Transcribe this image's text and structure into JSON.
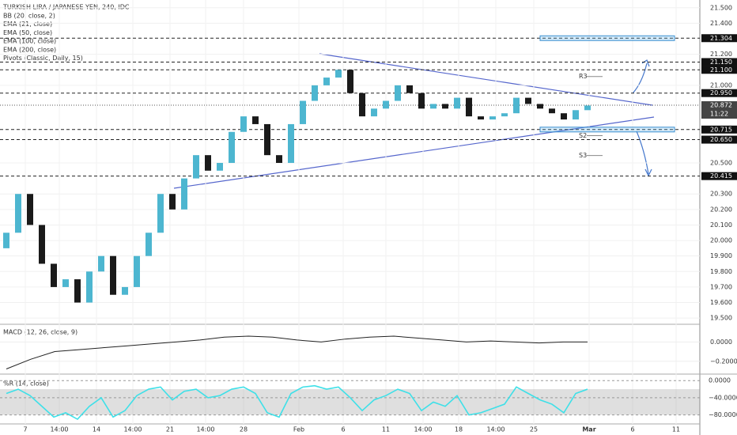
{
  "chart_data": {
    "type": "candlestick",
    "title": "TURKISH LIRA / JAPANESE YEN, 240, IDC",
    "indicators": [
      "BB (20, close, 2)",
      "EMA (21, close)",
      "EMA (50, close)",
      "EMA (100, close)",
      "EMA (200, close)",
      "Pivots (Classic, Daily, 15)"
    ],
    "open": [
      19.95,
      20.05,
      20.3,
      20.1,
      19.85,
      19.7,
      19.75,
      19.6,
      19.8,
      19.9,
      19.65,
      19.7,
      19.9,
      20.05,
      20.3,
      20.2,
      20.4,
      20.55,
      20.45,
      20.5,
      20.7,
      20.8,
      20.75,
      20.55,
      20.5,
      20.75,
      20.9,
      21.0,
      21.05,
      21.1,
      20.95,
      20.8,
      20.85,
      20.9,
      21.0,
      20.95,
      20.85,
      20.88,
      20.85,
      20.92,
      20.8,
      20.78,
      20.8,
      20.82,
      20.92,
      20.88,
      20.85,
      20.82,
      20.78,
      20.84
    ],
    "close": [
      20.05,
      20.3,
      20.1,
      19.85,
      19.7,
      19.75,
      19.6,
      19.8,
      19.9,
      19.65,
      19.7,
      19.9,
      20.05,
      20.3,
      20.2,
      20.4,
      20.55,
      20.45,
      20.5,
      20.7,
      20.8,
      20.75,
      20.55,
      20.5,
      20.75,
      20.9,
      21.0,
      21.05,
      21.1,
      20.95,
      20.8,
      20.85,
      20.9,
      21.0,
      20.95,
      20.85,
      20.88,
      20.85,
      20.92,
      20.8,
      20.78,
      20.8,
      20.82,
      20.92,
      20.88,
      20.85,
      20.82,
      20.78,
      20.84,
      20.87
    ],
    "up_color": "#4db6d0",
    "down_color": "#1a1a1a",
    "ylim": [
      19.46,
      21.55
    ],
    "yticks": [
      {
        "value": 21.5,
        "label": "21.500"
      },
      {
        "value": 21.4,
        "label": "21.400"
      },
      {
        "value": 21.2,
        "label": "21.200"
      },
      {
        "value": 21.0,
        "label": "21.000"
      },
      {
        "value": 20.5,
        "label": "20.500"
      },
      {
        "value": 20.3,
        "label": "20.300"
      },
      {
        "value": 20.2,
        "label": "20.200"
      },
      {
        "value": 20.1,
        "label": "20.100"
      },
      {
        "value": 20.0,
        "label": "20.000"
      },
      {
        "value": 19.9,
        "label": "19.900"
      },
      {
        "value": 19.8,
        "label": "19.800"
      },
      {
        "value": 19.7,
        "label": "19.700"
      },
      {
        "value": 19.6,
        "label": "19.600"
      },
      {
        "value": 19.5,
        "label": "19.500"
      }
    ],
    "levels": [
      {
        "value": 21.304,
        "label": "21.304"
      },
      {
        "value": 21.15,
        "label": "21.150"
      },
      {
        "value": 21.1,
        "label": "21.100"
      },
      {
        "value": 20.95,
        "label": "20.950"
      },
      {
        "value": 20.715,
        "label": "20.715"
      },
      {
        "value": 20.65,
        "label": "20.650"
      },
      {
        "value": 20.415,
        "label": "20.415"
      }
    ],
    "last_price": {
      "value": 20.872,
      "label": "20.872"
    },
    "time_label": "11:22",
    "pivots": [
      {
        "name": "R3",
        "value": 21.057
      },
      {
        "name": "S2",
        "value": 20.676
      },
      {
        "name": "S3",
        "value": 20.548
      }
    ],
    "x_labels": [
      "7",
      "14:00",
      "14",
      "14:00",
      "21",
      "14:00",
      "28",
      "Feb",
      "6",
      "11",
      "14:00",
      "18",
      "14:00",
      "25",
      "Mar",
      "6",
      "11"
    ],
    "macd": {
      "title": "MACD (12, 26, close, 9)",
      "values": [
        -0.28,
        -0.18,
        -0.1,
        -0.08,
        -0.06,
        -0.04,
        -0.02,
        0.0,
        0.02,
        0.05,
        0.06,
        0.05,
        0.02,
        0.0,
        0.03,
        0.05,
        0.06,
        0.04,
        0.02,
        0.0,
        0.01,
        0.0,
        -0.01,
        0.0,
        0.0
      ],
      "color": "#222222",
      "ylim": [
        -0.325,
        0.175
      ],
      "yticks": [
        {
          "value": 0,
          "label": "0.0000"
        },
        {
          "value": -0.2,
          "label": "−0.2000"
        }
      ]
    },
    "williams": {
      "title": "%R (14, close)",
      "values": [
        -30,
        -20,
        -35,
        -60,
        -85,
        -75,
        -90,
        -60,
        -40,
        -85,
        -70,
        -35,
        -20,
        -15,
        -45,
        -25,
        -20,
        -40,
        -35,
        -20,
        -15,
        -30,
        -75,
        -85,
        -30,
        -15,
        -12,
        -20,
        -15,
        -40,
        -70,
        -45,
        -35,
        -20,
        -30,
        -70,
        -50,
        -60,
        -35,
        -80,
        -75,
        -65,
        -55,
        -15,
        -30,
        -45,
        -55,
        -75,
        -30,
        -20
      ],
      "color": "#3ee0e8",
      "band": [
        -20,
        -80
      ],
      "ylim": [
        -101,
        13.3
      ],
      "yticks": [
        {
          "value": 0,
          "label": "0.0000"
        },
        {
          "value": -40,
          "label": "−40.0000"
        },
        {
          "value": -80,
          "label": "−80.0000"
        }
      ]
    }
  }
}
